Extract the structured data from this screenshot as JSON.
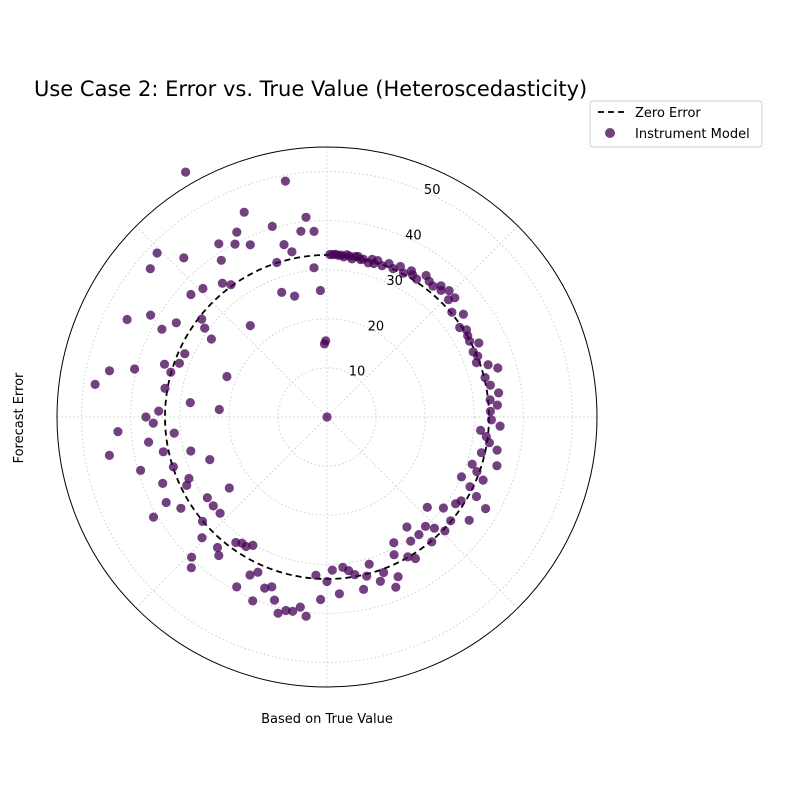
{
  "chart_data": {
    "type": "scatter",
    "projection": "polar",
    "title": "Use Case 2: Error vs. True Value (Heteroscedasticity)",
    "xlabel": "Based on True Value",
    "ylabel": "Forecast Error",
    "r_ticks": [
      "10",
      "20",
      "30",
      "40",
      "50"
    ],
    "r_tick_values": [
      10,
      20,
      30,
      40,
      50
    ],
    "rlim": [
      0,
      55
    ],
    "angle_gridlines_deg": [
      0,
      45,
      90,
      135,
      180,
      225,
      270,
      315
    ],
    "theta_zero": "north",
    "theta_direction": "clockwise",
    "grid": true,
    "legend_position": "top-right outside",
    "series": [
      {
        "name": "Zero Error",
        "kind": "line",
        "style": "dashed",
        "color": "#000000",
        "r": 33
      },
      {
        "name": "Instrument Model",
        "kind": "scatter",
        "color": "#440154",
        "alpha": 0.75,
        "points": [
          [
            0,
            0
          ],
          [
            1,
            33.1
          ],
          [
            2,
            33.1
          ],
          [
            3,
            33.2
          ],
          [
            4,
            33.0
          ],
          [
            5,
            33.1
          ],
          [
            6,
            32.8
          ],
          [
            7,
            33.3
          ],
          [
            8,
            33.1
          ],
          [
            9,
            32.6
          ],
          [
            10,
            33.2
          ],
          [
            11,
            33.3
          ],
          [
            12,
            32.8
          ],
          [
            13,
            33.0
          ],
          [
            15,
            32.5
          ],
          [
            16,
            33.4
          ],
          [
            17,
            32.7
          ],
          [
            18,
            33.5
          ],
          [
            20,
            32.8
          ],
          [
            22,
            33.7
          ],
          [
            24,
            33.1
          ],
          [
            26,
            34.1
          ],
          [
            28,
            33.2
          ],
          [
            30,
            34.4
          ],
          [
            31,
            33.8
          ],
          [
            33,
            33.5
          ],
          [
            35,
            35.2
          ],
          [
            37,
            34.6
          ],
          [
            39,
            34.3
          ],
          [
            41,
            35.4
          ],
          [
            42,
            34.7
          ],
          [
            44,
            35.8
          ],
          [
            46,
            34.4
          ],
          [
            47,
            35.6
          ],
          [
            50,
            33.2
          ],
          [
            53,
            34.8
          ],
          [
            56,
            32.6
          ],
          [
            58,
            33.5
          ],
          [
            60,
            33.1
          ],
          [
            62,
            32.9
          ],
          [
            64,
            34.4
          ],
          [
            66,
            32.6
          ],
          [
            68,
            33.1
          ],
          [
            70,
            32.4
          ],
          [
            72,
            34.5
          ],
          [
            74,
            36.2
          ],
          [
            76,
            33.2
          ],
          [
            79,
            33.9
          ],
          [
            82,
            35.3
          ],
          [
            84,
            33.4
          ],
          [
            86,
            34.8
          ],
          [
            88,
            33.3
          ],
          [
            91,
            33.5
          ],
          [
            93,
            35.3
          ],
          [
            95,
            31.4
          ],
          [
            97,
            32.7
          ],
          [
            99,
            33.5
          ],
          [
            101,
            35.3
          ],
          [
            103,
            32.3
          ],
          [
            106,
            36.0
          ],
          [
            108,
            31.1
          ],
          [
            110,
            32.5
          ],
          [
            112,
            34.3
          ],
          [
            114,
            30.0
          ],
          [
            116,
            32.4
          ],
          [
            118,
            34.5
          ],
          [
            120,
            37.3
          ],
          [
            122,
            32.2
          ],
          [
            124,
            31.6
          ],
          [
            126,
            35.8
          ],
          [
            128,
            30.1
          ],
          [
            130,
            32.9
          ],
          [
            132,
            27.5
          ],
          [
            134,
            33.4
          ],
          [
            136,
            31.5
          ],
          [
            138,
            30.0
          ],
          [
            140,
            33.2
          ],
          [
            142,
            30.4
          ],
          [
            144,
            27.7
          ],
          [
            146,
            30.5
          ],
          [
            148,
            34.0
          ],
          [
            150,
            32.9
          ],
          [
            152,
            29.0
          ],
          [
            154,
            31.2
          ],
          [
            156,
            35.6
          ],
          [
            158,
            37.4
          ],
          [
            160,
            33.7
          ],
          [
            162,
            35.2
          ],
          [
            164,
            31.2
          ],
          [
            166,
            33.4
          ],
          [
            168,
            35.9
          ],
          [
            170,
            32.6
          ],
          [
            172,
            31.6
          ],
          [
            174,
            30.8
          ],
          [
            176,
            36.1
          ],
          [
            178,
            31.2
          ],
          [
            180,
            33.5
          ],
          [
            182,
            37.2
          ],
          [
            184,
            32.3
          ],
          [
            186,
            40.8
          ],
          [
            188,
            39.1
          ],
          [
            190,
            40.2
          ],
          [
            192,
            40.3
          ],
          [
            194,
            41.2
          ],
          [
            196,
            38.8
          ],
          [
            198,
            36.4
          ],
          [
            200,
            37.1
          ],
          [
            202,
            40.4
          ],
          [
            204,
            34.6
          ],
          [
            206,
            35.8
          ],
          [
            208,
            39.2
          ],
          [
            210,
            30.2
          ],
          [
            212,
            31.1
          ],
          [
            214,
            31.0
          ],
          [
            216,
            31.6
          ],
          [
            218,
            35.8
          ],
          [
            220,
            34.7
          ],
          [
            222,
            41.3
          ],
          [
            224,
            39.7
          ],
          [
            226,
            35.4
          ],
          [
            228,
            29.3
          ],
          [
            230,
            33.1
          ],
          [
            232,
            29.4
          ],
          [
            234,
            24.6
          ],
          [
            236,
            29.4
          ],
          [
            238,
            35.1
          ],
          [
            240,
            40.8
          ],
          [
            242,
            37.1
          ],
          [
            244,
            31.8
          ],
          [
            246,
            30.8
          ],
          [
            248,
            36.1
          ],
          [
            250,
            25.4
          ],
          [
            252,
            32.9
          ],
          [
            254,
            39.5
          ],
          [
            256,
            28.6
          ],
          [
            258,
            34.1
          ],
          [
            260,
            45.0
          ],
          [
            262,
            36.7
          ],
          [
            264,
            31.3
          ],
          [
            266,
            42.7
          ],
          [
            268,
            35.4
          ],
          [
            270,
            36.9
          ],
          [
            272,
            34.3
          ],
          [
            274,
            22.0
          ],
          [
            276,
            28.0
          ],
          [
            278,
            47.7
          ],
          [
            280,
            33.5
          ],
          [
            282,
            45.3
          ],
          [
            284,
            40.4
          ],
          [
            286,
            33.1
          ],
          [
            288,
            34.8
          ],
          [
            290,
            32.0
          ],
          [
            292,
            22.0
          ],
          [
            294,
            31.7
          ],
          [
            296,
            45.3
          ],
          [
            298,
            38.1
          ],
          [
            300,
            41.5
          ],
          [
            302,
            36.2
          ],
          [
            304,
            28.4
          ],
          [
            306,
            30.8
          ],
          [
            308,
            32.4
          ],
          [
            310,
            47.0
          ],
          [
            312,
            37.3
          ],
          [
            314,
            48.1
          ],
          [
            316,
            36.4
          ],
          [
            318,
            43.6
          ],
          [
            320,
            24.3
          ],
          [
            322,
            34.6
          ],
          [
            324,
            33.3
          ],
          [
            326,
            38.5
          ],
          [
            328,
            41.6
          ],
          [
            330,
            57.6
          ],
          [
            332,
            39.9
          ],
          [
            334,
            41.9
          ],
          [
            336,
            38.4
          ],
          [
            338,
            45.0
          ],
          [
            340,
            27.0
          ],
          [
            342,
            33.1
          ],
          [
            344,
            40.4
          ],
          [
            346,
            36.2
          ],
          [
            348,
            34.4
          ],
          [
            350,
            48.8
          ],
          [
            352,
            38.2
          ],
          [
            354,
            40.9
          ],
          [
            356,
            37.9
          ],
          [
            358,
            14.9
          ],
          [
            357,
            25.8
          ],
          [
            355,
            30.5
          ],
          [
            359,
            15.5
          ],
          [
            345,
            25.5
          ]
        ]
      }
    ]
  }
}
